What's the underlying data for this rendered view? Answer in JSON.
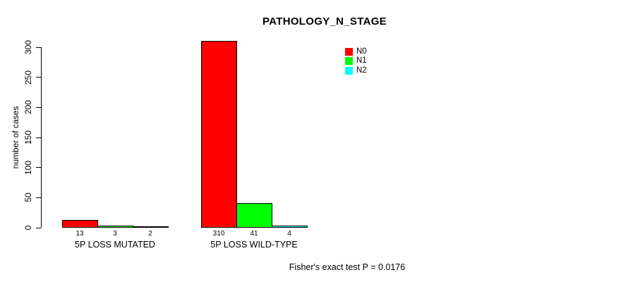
{
  "chart_data": {
    "type": "bar",
    "title": "PATHOLOGY_N_STAGE",
    "ylabel": "number of cases",
    "xlabel": "",
    "ylim": [
      0,
      300
    ],
    "yticks": [
      0,
      50,
      100,
      150,
      200,
      250,
      300
    ],
    "categories": [
      "5P LOSS MUTATED",
      "5P LOSS WILD-TYPE"
    ],
    "series": [
      {
        "name": "N0",
        "color": "#ff0000",
        "values": [
          13,
          310
        ]
      },
      {
        "name": "N1",
        "color": "#00ff00",
        "values": [
          3,
          41
        ]
      },
      {
        "name": "N2",
        "color": "#00ffff",
        "values": [
          2,
          4
        ]
      }
    ],
    "bar_value_labels": [
      [
        "13",
        "3",
        "2"
      ],
      [
        "310",
        "41",
        "4"
      ]
    ],
    "legend": {
      "position": "top-right",
      "entries": [
        "N0",
        "N1",
        "N2"
      ],
      "colors": [
        "#ff0000",
        "#00ff00",
        "#00ffff"
      ]
    },
    "footnote": "Fisher's exact test P = 0.0176",
    "bar_border_color": "#000000",
    "grid": false
  }
}
